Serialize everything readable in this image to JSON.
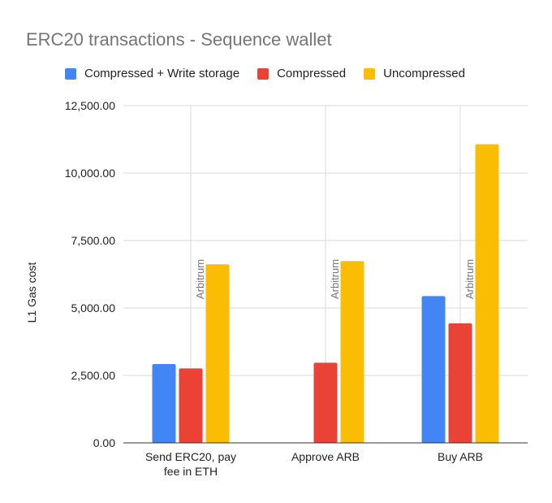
{
  "chart_data": {
    "type": "bar",
    "title": "ERC20 transactions - Sequence wallet",
    "ylabel": "L1 Gas cost",
    "xlabel": "",
    "ylim": [
      0,
      12500
    ],
    "yticks": [
      0,
      2500,
      5000,
      7500,
      10000,
      12500
    ],
    "ytick_labels": [
      "0.00",
      "2,500.00",
      "5,000.00",
      "7,500.00",
      "10,000.00",
      "12,500.00"
    ],
    "grid": true,
    "legend_position": "top",
    "categories": [
      "Send ERC20, pay fee in ETH",
      "Approve ARB",
      "Buy ARB"
    ],
    "category_lines": [
      [
        "Send ERC20, pay",
        "fee in ETH"
      ],
      [
        "Approve ARB"
      ],
      [
        "Buy ARB"
      ]
    ],
    "series": [
      {
        "name": "Compressed + Write storage",
        "color": "#4285f4",
        "values": [
          2920,
          0,
          5440
        ]
      },
      {
        "name": "Compressed",
        "color": "#ea4335",
        "values": [
          2760,
          2970,
          4430
        ]
      },
      {
        "name": "Uncompressed",
        "color": "#fbbc04",
        "values": [
          6620,
          6740,
          11070
        ]
      }
    ],
    "annotations": [
      {
        "text": "Arbitrum",
        "category": 0
      },
      {
        "text": "Arbitrum",
        "category": 1
      },
      {
        "text": "Arbitrum",
        "category": 2
      }
    ]
  }
}
